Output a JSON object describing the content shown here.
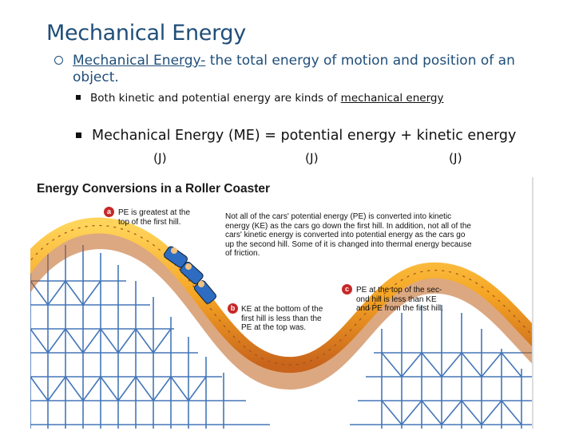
{
  "title": "Mechanical Energy",
  "bullet1": {
    "term": "Mechanical Energy-",
    "text": " the total energy of motion and position of an object."
  },
  "bullet2": {
    "text": "Both kinetic and potential energy are kinds of ",
    "link": "mechanical energy"
  },
  "bullet3": {
    "text": "Mechanical Energy (ME) = potential energy + kinetic energy",
    "units": [
      "(J)",
      "(J)",
      "(J)"
    ]
  },
  "figure": {
    "title": "Energy Conversions in a Roller Coaster",
    "intro": "Not all of the cars' potential energy (PE) is converted into kinetic energy (KE) as the cars go down the first hill. In addition, not all of the cars' kinetic energy is converted into potential energy as the cars go up the second hill. Some of it is changed into thermal energy because of friction.",
    "callouts": [
      {
        "badge": "a",
        "line1": "PE is greatest at the",
        "line2": "top of the first hill."
      },
      {
        "badge": "b",
        "line1": "KE at the bottom of the",
        "line2": "first hill is less than the",
        "line3": "PE at the top was."
      },
      {
        "badge": "c",
        "line1": "PE at the top of the sec-",
        "line2": "ond hill is less than KE",
        "line3": "and PE from the first hill."
      }
    ],
    "colors": {
      "track": "#f0a020",
      "trackEdge": "#c0601a",
      "lattice": "#3a6fb5",
      "badge": "#c62828"
    }
  }
}
